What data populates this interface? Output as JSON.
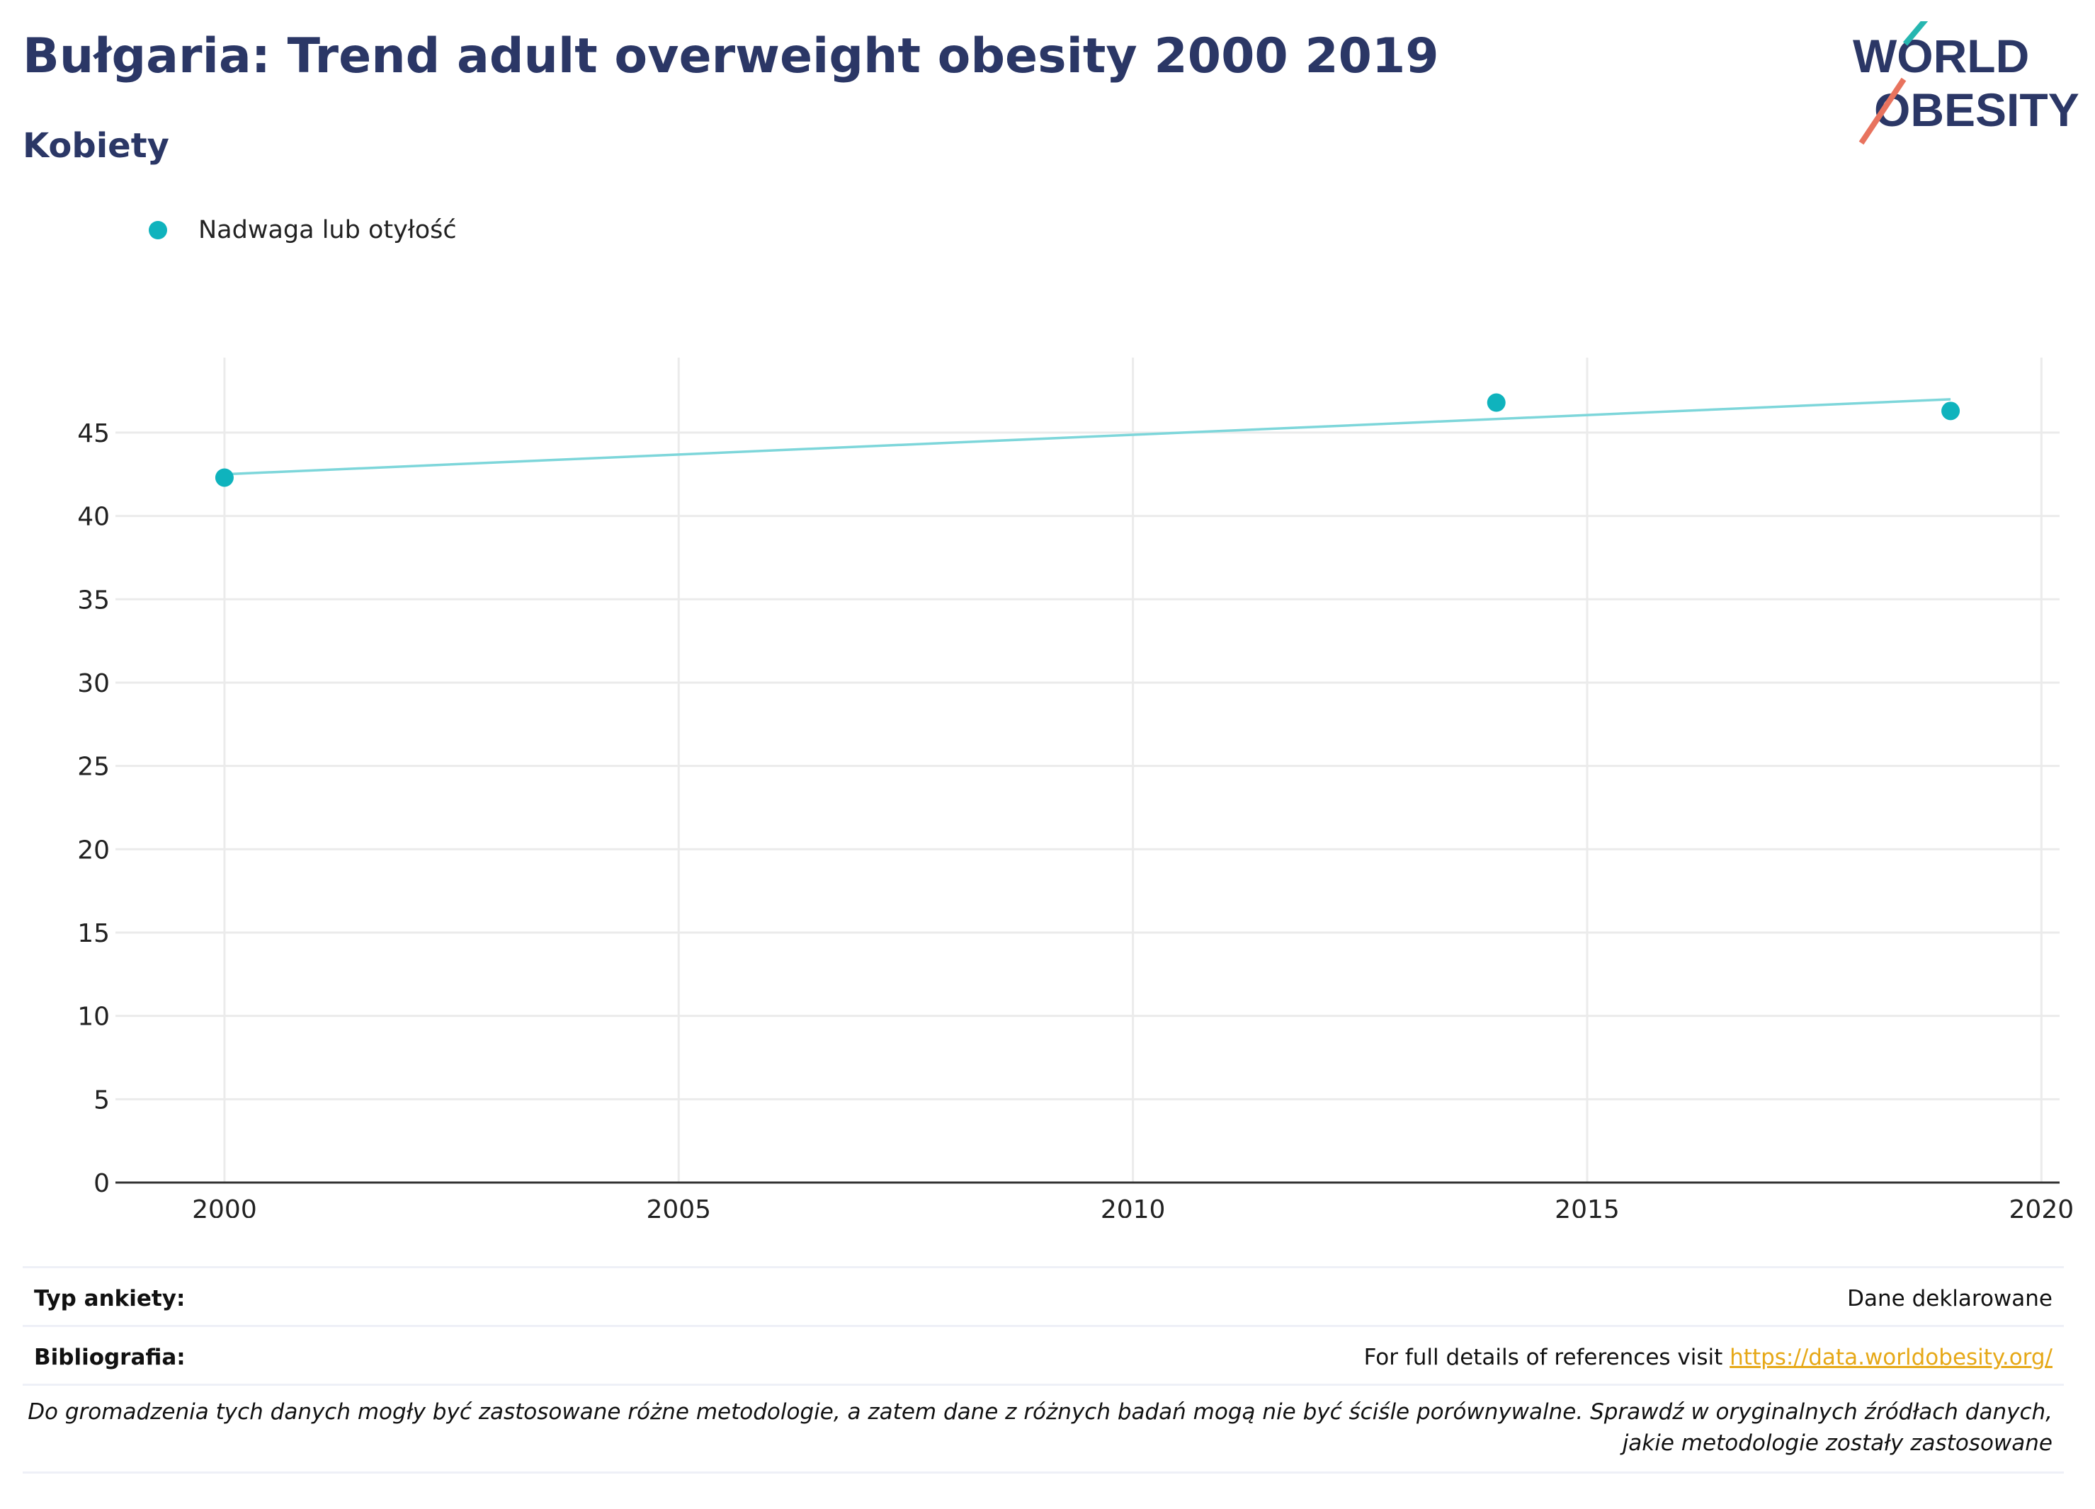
{
  "header": {
    "title": "Bułgaria: Trend adult overweight obesity 2000 2019",
    "subtitle": "Kobiety"
  },
  "logo": {
    "line1": "WORLD",
    "line2": "OBESITY"
  },
  "colors": {
    "series": "#0fb3bd",
    "trend": "#7dd6da",
    "title": "#2b3766",
    "logo_teal": "#26b6b0",
    "logo_coral": "#e8735e",
    "link": "#e6a817"
  },
  "chart_data": {
    "type": "scatter",
    "series": [
      {
        "name": "Nadwaga lub otyłość",
        "x": [
          2000,
          2014,
          2019
        ],
        "y": [
          42.3,
          46.8,
          46.3
        ]
      }
    ],
    "trendline": {
      "x": [
        2000,
        2019
      ],
      "y": [
        42.5,
        47.0
      ]
    },
    "x_ticks": [
      2000,
      2005,
      2010,
      2015,
      2020
    ],
    "y_ticks": [
      0,
      5,
      10,
      15,
      20,
      25,
      30,
      35,
      40,
      45
    ],
    "xlim": [
      1998.8,
      2020.2
    ],
    "ylim": [
      0,
      49.5
    ],
    "grid": true,
    "legend_position": "top-left"
  },
  "footer": {
    "survey_label": "Typ ankiety:",
    "survey_value": "Dane deklarowane",
    "biblio_label": "Bibliografia:",
    "biblio_text": "For full details of references visit ",
    "biblio_link": "https://data.worldobesity.org/",
    "note": "Do gromadzenia tych danych mogły być zastosowane różne metodologie, a zatem dane z różnych badań mogą nie być ściśle porównywalne. Sprawdź w oryginalnych źródłach danych, jakie metodologie zostały zastosowane"
  }
}
